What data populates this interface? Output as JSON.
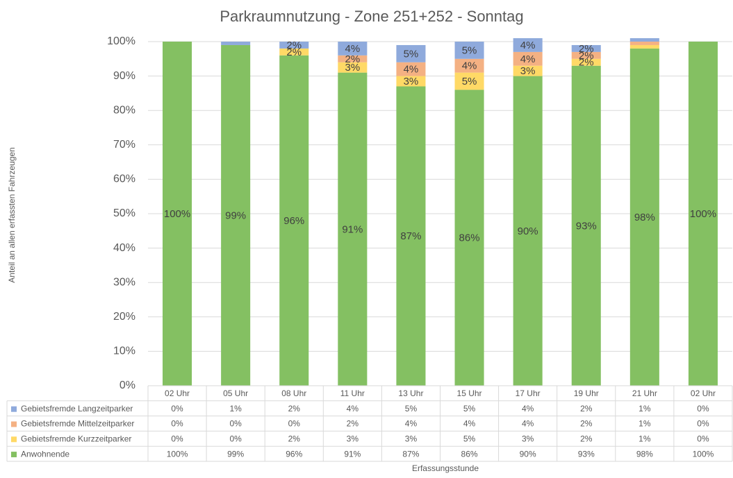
{
  "chart_data": {
    "type": "stacked_bar",
    "title": "Parkraumnutzung - Zone 251+252 - Sonntag",
    "y_label": "Anteil an allen erfassten Fahrzeugen",
    "x_label": "Erfassungsstunde",
    "categories": [
      "02 Uhr",
      "05 Uhr",
      "08 Uhr",
      "11 Uhr",
      "13 Uhr",
      "15 Uhr",
      "17 Uhr",
      "19 Uhr",
      "21 Uhr",
      "02 Uhr"
    ],
    "ylim": [
      0,
      100
    ],
    "yticks": [
      {
        "value": 0,
        "label": "0%"
      },
      {
        "value": 10,
        "label": "10%"
      },
      {
        "value": 20,
        "label": "20%"
      },
      {
        "value": 30,
        "label": "30%"
      },
      {
        "value": 40,
        "label": "40%"
      },
      {
        "value": 50,
        "label": "50%"
      },
      {
        "value": 60,
        "label": "60%"
      },
      {
        "value": 70,
        "label": "70%"
      },
      {
        "value": 80,
        "label": "80%"
      },
      {
        "value": 90,
        "label": "90%"
      },
      {
        "value": 100,
        "label": "100%"
      }
    ],
    "grid": true,
    "series": [
      {
        "name": "Anwohnende",
        "color": "#84c062",
        "values": [
          100,
          99,
          96,
          91,
          87,
          86,
          90,
          93,
          98,
          100
        ],
        "value_labels": [
          "100%",
          "99%",
          "96%",
          "91%",
          "87%",
          "86%",
          "90%",
          "93%",
          "98%",
          "100%"
        ]
      },
      {
        "name": "Gebietsfremde Kurzzeitparker",
        "color": "#ffd966",
        "values": [
          0,
          0,
          2,
          3,
          3,
          5,
          3,
          2,
          1,
          0
        ],
        "value_labels": [
          "0%",
          "0%",
          "2%",
          "3%",
          "3%",
          "5%",
          "3%",
          "2%",
          "1%",
          "0%"
        ]
      },
      {
        "name": "Gebietsfremde Mittelzeitparker",
        "color": "#f4b183",
        "values": [
          0,
          0,
          0,
          2,
          4,
          4,
          4,
          2,
          1,
          0
        ],
        "value_labels": [
          "0%",
          "0%",
          "0%",
          "2%",
          "4%",
          "4%",
          "4%",
          "2%",
          "1%",
          "0%"
        ]
      },
      {
        "name": "Gebietsfremde Langzeitparker",
        "color": "#8faadc",
        "values": [
          0,
          1,
          2,
          4,
          5,
          5,
          4,
          2,
          1,
          0
        ],
        "value_labels": [
          "0%",
          "1%",
          "2%",
          "4%",
          "5%",
          "5%",
          "4%",
          "2%",
          "1%",
          "0%"
        ]
      }
    ]
  }
}
